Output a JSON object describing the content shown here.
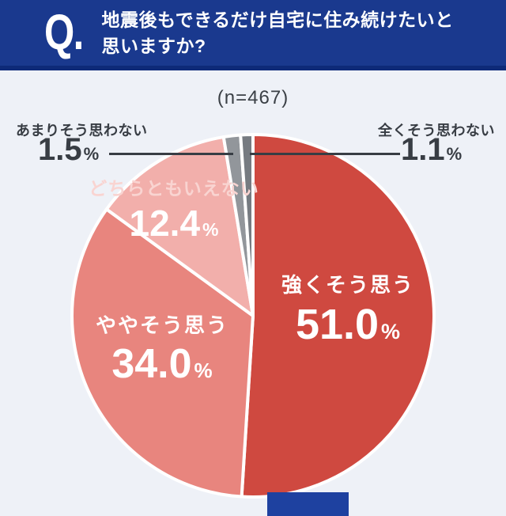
{
  "colors": {
    "background": "#eef1f7",
    "header_bg": "#1a398e",
    "header_bg_dark": "#0e2a78",
    "text_dark": "#383d44",
    "leader_line": "#383d44",
    "footer_box": "#1e41a0",
    "inside_label_light_pink": "#f9d4d1"
  },
  "header": {
    "q_mark": "Q.",
    "question_line1": "地震後もできるだけ自宅に住み続けたいと",
    "question_line2": "思いますか?"
  },
  "sample_size": "(n=467)",
  "chart_data": {
    "type": "pie",
    "title": "地震後もできるだけ自宅に住み続けたいと思いますか?",
    "n_label": "(n=467)",
    "n": 467,
    "direction": "clockwise",
    "start_angle": "12-oclock",
    "percent_sign": "%",
    "slices": [
      {
        "label": "強くそう思う",
        "value": 51.0,
        "display": "51.0",
        "color": "#cf4940",
        "label_position": "inside"
      },
      {
        "label": "ややそう思う",
        "value": 34.0,
        "display": "34.0",
        "color": "#e8857e",
        "label_position": "inside"
      },
      {
        "label": "どちらともいえない",
        "value": 12.4,
        "display": "12.4",
        "color": "#f2afab",
        "label_position": "inside"
      },
      {
        "label": "あまりそう思わない",
        "value": 1.5,
        "display": "1.5",
        "color": "#92969b",
        "label_position": "callout-left"
      },
      {
        "label": "全くそう思わない",
        "value": 1.1,
        "display": "1.1",
        "color": "#767b81",
        "label_position": "callout-right"
      }
    ]
  }
}
